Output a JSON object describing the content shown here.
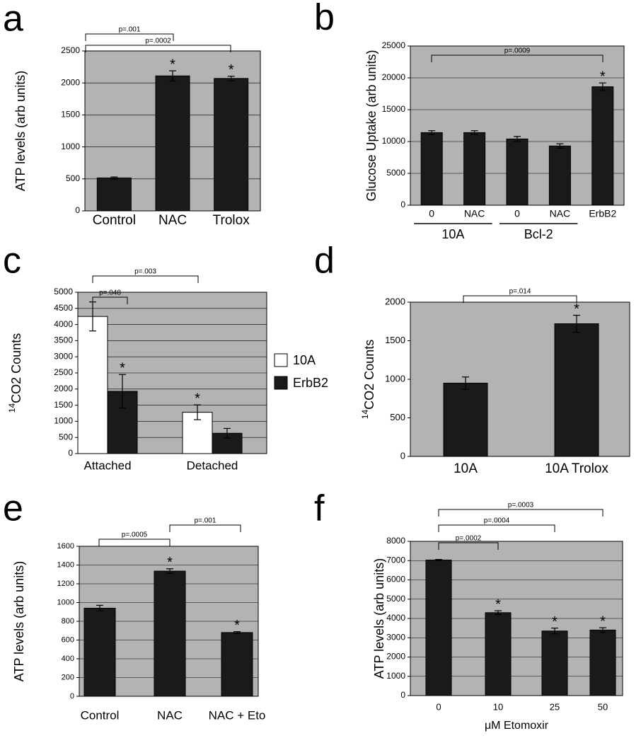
{
  "chart_data": [
    {
      "panel": "a",
      "type": "bar",
      "y_label": "ATP levels (arb units)",
      "categories": [
        "Control",
        "NAC",
        "Trolox"
      ],
      "series": [
        {
          "color": "#1a1a1a",
          "values": [
            515,
            2110,
            2070
          ],
          "errors": [
            15,
            80,
            35
          ]
        }
      ],
      "ylim": [
        0,
        2500
      ],
      "yticks": [
        0,
        500,
        1000,
        1500,
        2000,
        2500
      ],
      "grid": true,
      "annotations": [
        "p=.001",
        "p=.0002",
        "*",
        "*"
      ]
    },
    {
      "panel": "b",
      "type": "bar",
      "y_label": "Glucose Uptake (arb units)",
      "categories": [
        "0",
        "NAC",
        "0",
        "NAC",
        "ErbB2"
      ],
      "category_groups": [
        "10A",
        "Bcl-2"
      ],
      "series": [
        {
          "color": "#1a1a1a",
          "values": [
            11400,
            11400,
            10400,
            9300,
            18600
          ],
          "errors": [
            300,
            300,
            400,
            350,
            600
          ]
        }
      ],
      "ylim": [
        0,
        25000
      ],
      "yticks": [
        0,
        5000,
        10000,
        15000,
        20000,
        25000
      ],
      "grid": true,
      "annotations": [
        "p=.0009",
        "*"
      ]
    },
    {
      "panel": "c",
      "type": "bar",
      "y_label_superscript": "14",
      "y_label": "CO2 Counts",
      "categories": [
        "Attached",
        "Detached"
      ],
      "series": [
        {
          "name": "10A",
          "color": "#ffffff",
          "values": [
            4250,
            1280
          ],
          "errors": [
            450,
            230
          ]
        },
        {
          "name": "ErbB2",
          "color": "#1a1a1a",
          "values": [
            1930,
            630
          ],
          "errors": [
            520,
            150
          ]
        }
      ],
      "ylim": [
        0,
        5000
      ],
      "yticks": [
        0,
        500,
        1000,
        1500,
        2000,
        2500,
        3000,
        3500,
        4000,
        4500,
        5000
      ],
      "grid": true,
      "annotations": [
        "p=.048",
        "p=.003",
        "*",
        "*"
      ]
    },
    {
      "panel": "d",
      "type": "bar",
      "y_label_superscript": "14",
      "y_label": "CO2 Counts",
      "categories": [
        "10A",
        "10A Trolox"
      ],
      "series": [
        {
          "color": "#1a1a1a",
          "values": [
            950,
            1720
          ],
          "errors": [
            80,
            110
          ]
        }
      ],
      "ylim": [
        0,
        2000
      ],
      "yticks": [
        0,
        500,
        1000,
        1500,
        2000
      ],
      "grid": false,
      "annotations": [
        "p=.014",
        "*"
      ]
    },
    {
      "panel": "e",
      "type": "bar",
      "y_label": "ATP levels (arb units)",
      "categories": [
        "Control",
        "NAC",
        "NAC + Eto"
      ],
      "series": [
        {
          "color": "#1a1a1a",
          "values": [
            940,
            1335,
            680
          ],
          "errors": [
            30,
            25,
            10
          ]
        }
      ],
      "ylim": [
        0,
        1600
      ],
      "yticks": [
        0,
        200,
        400,
        600,
        800,
        1000,
        1200,
        1400,
        1600
      ],
      "grid": true,
      "annotations": [
        "p=.0005",
        "p=.001",
        "*",
        "*"
      ]
    },
    {
      "panel": "f",
      "type": "bar",
      "y_label": "ATP levels (arb units)",
      "x_label": "μM Etomoxir",
      "categories": [
        "0",
        "10",
        "25",
        "50"
      ],
      "series": [
        {
          "color": "#1a1a1a",
          "values": [
            7030,
            4300,
            3350,
            3400
          ],
          "errors": [
            30,
            100,
            150,
            120
          ]
        }
      ],
      "ylim": [
        0,
        8000
      ],
      "yticks": [
        0,
        1000,
        2000,
        3000,
        4000,
        5000,
        6000,
        7000,
        8000
      ],
      "grid": true,
      "annotations": [
        "p=.0002",
        "p=.0004",
        "p=.0003",
        "*",
        "*",
        "*"
      ]
    }
  ]
}
